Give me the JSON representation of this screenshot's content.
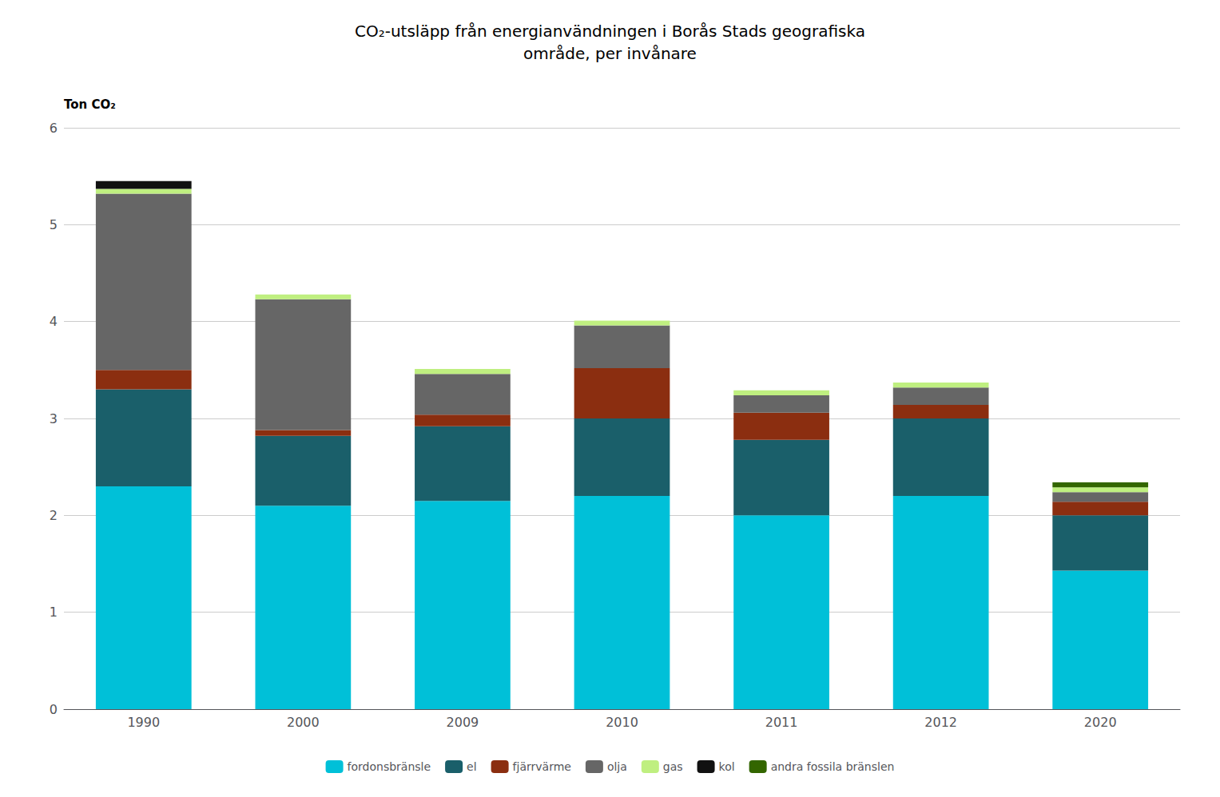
{
  "chart_data": {
    "type": "bar",
    "stacked": true,
    "title": "CO₂-utsläpp från energianvändningen i Borås Stads geografiska\nområde, per invånare",
    "ylabel": "Ton CO₂",
    "categories": [
      "1990",
      "2000",
      "2009",
      "2010",
      "2011",
      "2012",
      "2020"
    ],
    "series": [
      {
        "name": "fordonsbränsle",
        "color": "#00C0D8",
        "values": [
          2.3,
          2.1,
          2.15,
          2.2,
          2.0,
          2.2,
          1.43
        ]
      },
      {
        "name": "el",
        "color": "#1A5F6A",
        "values": [
          1.0,
          0.72,
          0.77,
          0.8,
          0.78,
          0.8,
          0.57
        ]
      },
      {
        "name": "fjärrvärme",
        "color": "#8B2E10",
        "values": [
          0.2,
          0.06,
          0.12,
          0.52,
          0.28,
          0.14,
          0.14
        ]
      },
      {
        "name": "olja",
        "color": "#666666",
        "values": [
          1.82,
          1.35,
          0.42,
          0.44,
          0.18,
          0.18,
          0.1
        ]
      },
      {
        "name": "gas",
        "color": "#BFEF80",
        "values": [
          0.05,
          0.05,
          0.05,
          0.05,
          0.05,
          0.05,
          0.05
        ]
      },
      {
        "name": "kol",
        "color": "#111111",
        "values": [
          0.08,
          0.0,
          0.0,
          0.0,
          0.0,
          0.0,
          0.0
        ]
      },
      {
        "name": "andra fossila bränslen",
        "color": "#336600",
        "values": [
          0.0,
          0.0,
          0.0,
          0.0,
          0.0,
          0.0,
          0.05
        ]
      }
    ],
    "ylim": [
      0,
      6
    ],
    "yticks": [
      0,
      1,
      2,
      3,
      4,
      5,
      6
    ],
    "grid": true,
    "legend": "bottom"
  }
}
